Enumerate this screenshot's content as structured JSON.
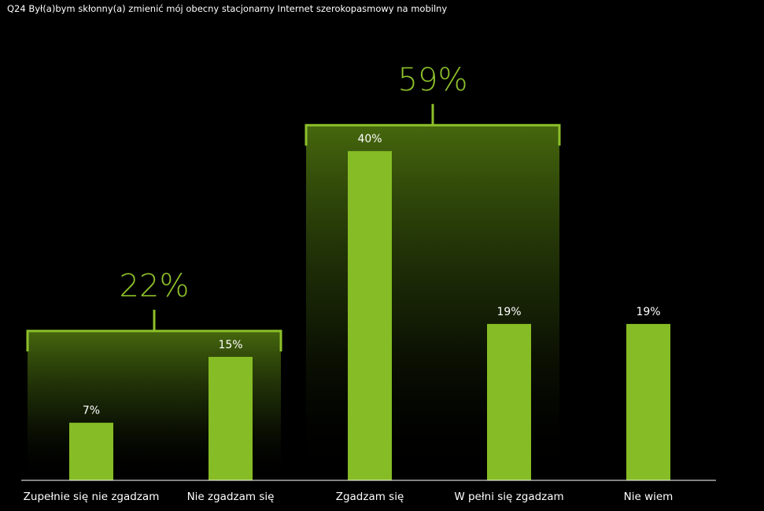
{
  "chart_data": {
    "type": "bar",
    "title": "Q24 Był(a)bym skłonny(a) zmienić mój obecny stacjonarny Internet szerokopasmowy na mobilny",
    "categories": [
      "Zupełnie się nie zgadzam",
      "Nie zgadzam się",
      "Zgadzam się",
      "W pełni się zgadzam",
      "Nie wiem"
    ],
    "values": [
      7,
      15,
      40,
      19,
      19
    ],
    "value_labels": [
      "7%",
      "15%",
      "40%",
      "19%",
      "19%"
    ],
    "groups": [
      {
        "label": "22%",
        "value": 22,
        "members": [
          0,
          1
        ]
      },
      {
        "label": "59%",
        "value": 59,
        "members": [
          2,
          3
        ]
      }
    ],
    "ylim": [
      0,
      45
    ],
    "grid": false,
    "legend": "none"
  },
  "colors": {
    "background": "#000000",
    "bar": "#86bc25",
    "accent": "#8dc02a",
    "axis": "#ffffff",
    "text": "#ffffff"
  }
}
